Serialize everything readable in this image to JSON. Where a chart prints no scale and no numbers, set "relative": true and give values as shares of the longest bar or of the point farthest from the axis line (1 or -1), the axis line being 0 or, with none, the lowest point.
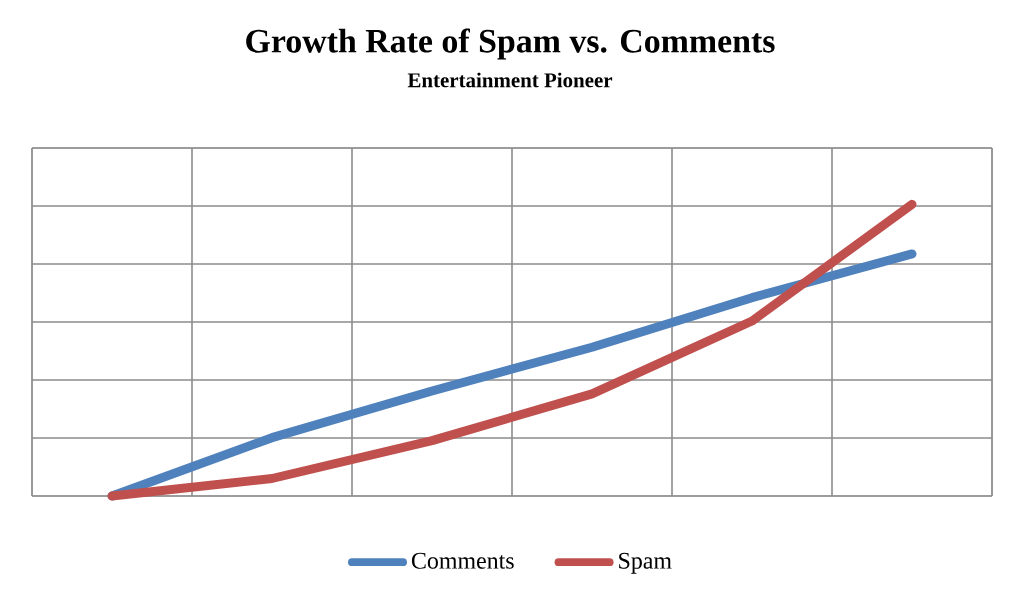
{
  "chart_data": {
    "type": "line",
    "title": "Growth Rate of Spam vs. Comments",
    "subtitle": "Entertainment Pioneer",
    "relative": true,
    "grid": true,
    "legend": "bottom",
    "line_style": "solid",
    "categories": [
      null,
      null,
      null,
      null,
      null,
      null
    ],
    "series": [
      {
        "name": "Comments",
        "color": "#4f81bd",
        "values": [
          0,
          0.2,
          0.36,
          0.51,
          0.68,
          0.83
        ]
      },
      {
        "name": "Spam",
        "color": "#c0504d",
        "values": [
          0,
          0.06,
          0.19,
          0.35,
          0.6,
          1
        ]
      }
    ]
  }
}
